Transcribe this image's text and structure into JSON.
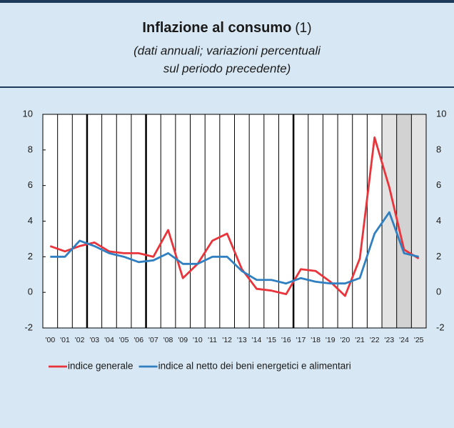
{
  "chart_data": {
    "type": "line",
    "title": "Inflazione al consumo",
    "title_note": "(1)",
    "subtitle": [
      "(dati annuali; variazioni percentuali",
      "sul periodo precedente)"
    ],
    "categories": [
      "'00",
      "'01",
      "'02",
      "'03",
      "'04",
      "'05",
      "'06",
      "'07",
      "'08",
      "'09",
      "'10",
      "'11",
      "'12",
      "'13",
      "'14",
      "'15",
      "'16",
      "'17",
      "'18",
      "'19",
      "'20",
      "'21",
      "'22",
      "'23",
      "'24",
      "'25"
    ],
    "series": [
      {
        "name": "indice generale",
        "color": "#e8343a",
        "values": [
          2.6,
          2.3,
          2.6,
          2.8,
          2.3,
          2.2,
          2.2,
          2.0,
          3.5,
          0.8,
          1.6,
          2.9,
          3.3,
          1.3,
          0.2,
          0.1,
          -0.1,
          1.3,
          1.2,
          0.6,
          -0.2,
          1.9,
          8.7,
          5.9,
          2.4,
          1.9
        ]
      },
      {
        "name": "indice al netto dei beni energetici e alimentari",
        "color": "#2f7fc1",
        "values": [
          2.0,
          2.0,
          2.9,
          2.6,
          2.2,
          2.0,
          1.7,
          1.8,
          2.2,
          1.6,
          1.6,
          2.0,
          2.0,
          1.2,
          0.7,
          0.7,
          0.5,
          0.8,
          0.6,
          0.5,
          0.5,
          0.8,
          3.3,
          4.5,
          2.2,
          2.0
        ]
      }
    ],
    "ylim": [
      -2,
      10
    ],
    "yticks": [
      -2,
      0,
      2,
      4,
      6,
      8,
      10
    ],
    "legend": "bottom"
  }
}
